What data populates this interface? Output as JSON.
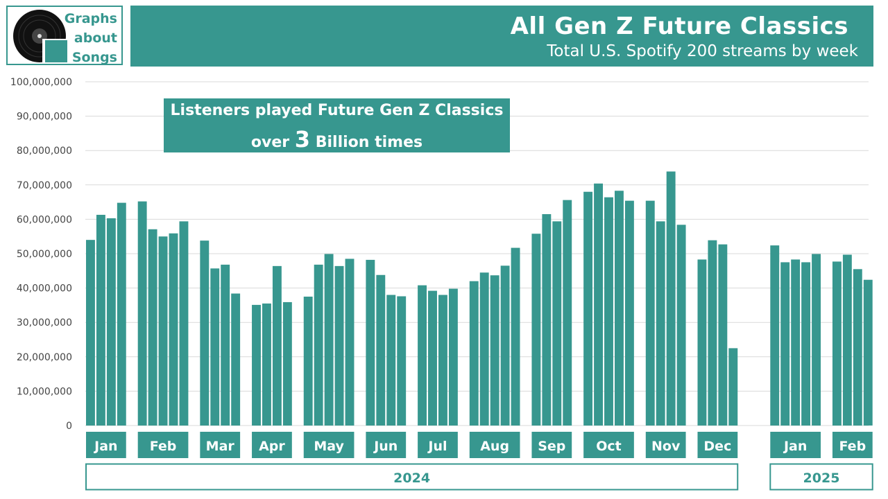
{
  "logo": {
    "lines": [
      "Graphs",
      "about",
      "Songs"
    ],
    "icon": "vinyl-record-icon"
  },
  "header": {
    "title": "All Gen Z Future Classics",
    "subtitle": "Total U.S. Spotify 200 streams by week"
  },
  "annotation": {
    "line1": "Listeners played Future Gen Z Classics",
    "pre": "over",
    "number": "3",
    "post": "Billion times"
  },
  "colors": {
    "accent": "#37978F",
    "grid": "#d9d9d9",
    "axis_text": "#444444"
  },
  "chart_data": {
    "type": "bar",
    "ylim": [
      0,
      100000000
    ],
    "yticks": [
      0,
      10000000,
      20000000,
      30000000,
      40000000,
      50000000,
      60000000,
      70000000,
      80000000,
      90000000,
      100000000
    ],
    "ytick_labels": [
      "0",
      "10,000,000",
      "20,000,000",
      "30,000,000",
      "40,000,000",
      "50,000,000",
      "60,000,000",
      "70,000,000",
      "80,000,000",
      "90,000,000",
      "100,000,000"
    ],
    "grid": true,
    "years": [
      {
        "label": "2024",
        "months": [
          "Jan",
          "Feb",
          "Mar",
          "Apr",
          "May",
          "Jun",
          "Jul",
          "Aug",
          "Sep",
          "Oct",
          "Nov",
          "Dec"
        ]
      },
      {
        "label": "2025",
        "months": [
          "Jan",
          "Feb"
        ]
      }
    ],
    "groups": [
      {
        "month": "Jan",
        "year": "2024",
        "values": [
          54000000,
          61300000,
          60300000,
          64800000
        ]
      },
      {
        "month": "Feb",
        "year": "2024",
        "values": [
          65200000,
          57100000,
          55000000,
          55900000,
          59400000
        ]
      },
      {
        "month": "Mar",
        "year": "2024",
        "values": [
          53800000,
          45700000,
          46800000,
          38400000
        ]
      },
      {
        "month": "Apr",
        "year": "2024",
        "values": [
          35100000,
          35500000,
          46400000,
          35900000
        ]
      },
      {
        "month": "May",
        "year": "2024",
        "values": [
          37500000,
          46800000,
          49900000,
          46400000,
          48500000
        ]
      },
      {
        "month": "Jun",
        "year": "2024",
        "values": [
          48200000,
          43800000,
          38000000,
          37600000
        ]
      },
      {
        "month": "Jul",
        "year": "2024",
        "values": [
          40800000,
          39200000,
          38000000,
          39800000
        ]
      },
      {
        "month": "Aug",
        "year": "2024",
        "values": [
          42000000,
          44500000,
          43700000,
          46500000,
          51700000
        ]
      },
      {
        "month": "Sep",
        "year": "2024",
        "values": [
          55800000,
          61500000,
          59400000,
          65600000
        ]
      },
      {
        "month": "Oct",
        "year": "2024",
        "values": [
          68000000,
          70400000,
          66400000,
          68300000,
          65400000
        ]
      },
      {
        "month": "Nov",
        "year": "2024",
        "values": [
          65400000,
          59400000,
          73900000,
          58400000
        ]
      },
      {
        "month": "Dec",
        "year": "2024",
        "values": [
          48300000,
          53900000,
          52700000,
          22500000
        ]
      },
      {
        "month": "Jan",
        "year": "2025",
        "values": [
          52400000,
          47500000,
          48300000,
          47500000,
          49900000
        ]
      },
      {
        "month": "Feb",
        "year": "2025",
        "values": [
          47700000,
          49700000,
          45500000,
          42400000
        ]
      }
    ]
  }
}
